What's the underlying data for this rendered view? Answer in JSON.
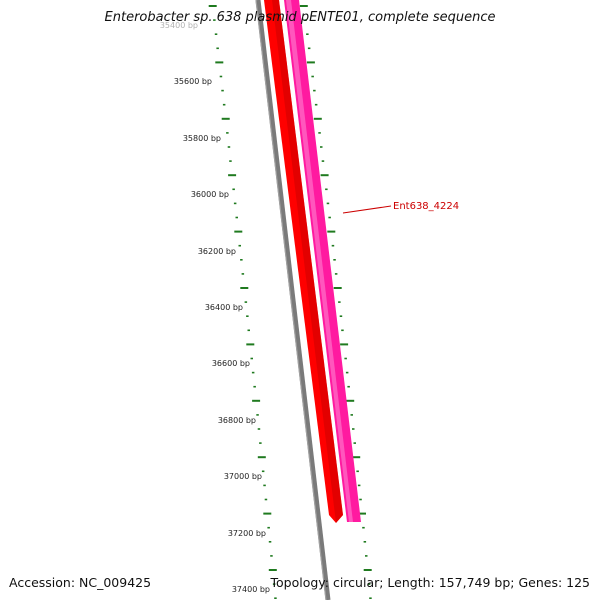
{
  "title": "Enterobacter sp. 638 plasmid pENTE01, complete sequence",
  "accession": "Accession: NC_009425",
  "summary": "Topology: circular; Length: 157,749 bp; Genes: 125",
  "colors": {
    "tick": "#1f7a1f",
    "backbone": "#808080",
    "gene_red": "#ff0000",
    "gene_pink": "#ff1aa0",
    "label": "#cc0000"
  },
  "ruler": {
    "unit": "bp",
    "top_clipped_label": "35400 bp",
    "labels": [
      "35600 bp",
      "35800 bp",
      "36000 bp",
      "36200 bp",
      "36400 bp",
      "36600 bp",
      "36800 bp",
      "37000 bp",
      "37200 bp",
      "37400 bp"
    ]
  },
  "genes": [
    {
      "name": "",
      "strand": "forward",
      "color": "#ff0000",
      "end_bp": 37150
    },
    {
      "name": "Ent638_4224",
      "strand": "reverse",
      "color": "#ff1aa0",
      "end_bp": 37150
    }
  ],
  "gene_label": "Ent638_4224"
}
